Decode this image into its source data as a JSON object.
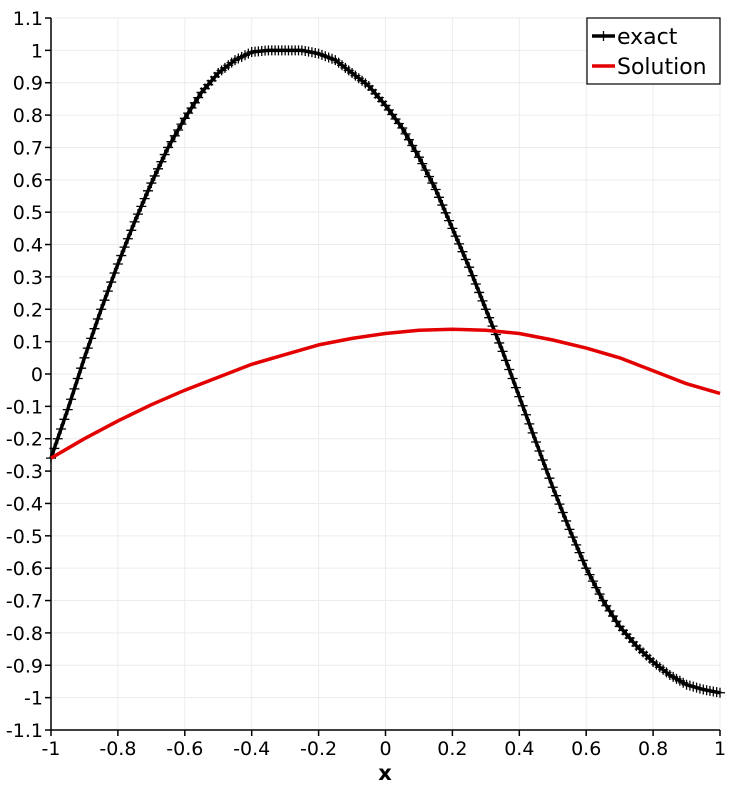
{
  "chart_data": {
    "type": "line",
    "title": "",
    "xlabel": "x",
    "ylabel": "",
    "xlim": [
      -1,
      1
    ],
    "ylim": [
      -1.1,
      1.1
    ],
    "grid": true,
    "legend_position": "top-right",
    "x_ticks": [
      -1,
      -0.8,
      -0.6,
      -0.4,
      -0.2,
      0,
      0.2,
      0.4,
      0.6,
      0.8,
      1
    ],
    "x_tick_labels": [
      "-1",
      "-0.8",
      "-0.6",
      "-0.4",
      "-0.2",
      "0",
      "0.2",
      "0.4",
      "0.6",
      "0.8",
      "1"
    ],
    "y_ticks": [
      1.1,
      1,
      0.9,
      0.8,
      0.7,
      0.6,
      0.5,
      0.4,
      0.3,
      0.2,
      0.1,
      0,
      -0.1,
      -0.2,
      -0.3,
      -0.4,
      -0.5,
      -0.6,
      -0.7,
      -0.8,
      -0.9,
      -1,
      -1.1
    ],
    "y_tick_labels": [
      "1.1",
      "1",
      "0.9",
      "0.8",
      "0.7",
      "0.6",
      "0.5",
      "0.4",
      "0.3",
      "0.2",
      "0.1",
      "0",
      "-0.1",
      "-0.2",
      "-0.3",
      "-0.4",
      "-0.5",
      "-0.6",
      "-0.7",
      "-0.8",
      "-0.9",
      "-1",
      "-1.1"
    ],
    "series": [
      {
        "name": "exact",
        "color": "#000000",
        "marker": "plus",
        "x": [
          -1,
          -0.95,
          -0.9,
          -0.85,
          -0.8,
          -0.75,
          -0.7,
          -0.65,
          -0.6,
          -0.55,
          -0.5,
          -0.45,
          -0.4,
          -0.35,
          -0.3,
          -0.25,
          -0.2,
          -0.15,
          -0.1,
          -0.05,
          0,
          0.05,
          0.1,
          0.15,
          0.2,
          0.25,
          0.3,
          0.35,
          0.4,
          0.45,
          0.5,
          0.55,
          0.6,
          0.65,
          0.7,
          0.75,
          0.8,
          0.85,
          0.9,
          0.95,
          1
        ],
        "y": [
          -0.26,
          -0.11,
          0.05,
          0.2,
          0.34,
          0.47,
          0.59,
          0.7,
          0.79,
          0.87,
          0.93,
          0.97,
          0.995,
          1.0,
          1.0,
          1.0,
          0.99,
          0.97,
          0.93,
          0.89,
          0.83,
          0.76,
          0.67,
          0.57,
          0.45,
          0.33,
          0.2,
          0.07,
          -0.07,
          -0.21,
          -0.35,
          -0.48,
          -0.6,
          -0.7,
          -0.78,
          -0.84,
          -0.89,
          -0.93,
          -0.96,
          -0.975,
          -0.985
        ]
      },
      {
        "name": "Solution",
        "color": "#e30000",
        "marker": "none",
        "x": [
          -1,
          -0.9,
          -0.8,
          -0.7,
          -0.6,
          -0.5,
          -0.4,
          -0.3,
          -0.2,
          -0.1,
          0,
          0.1,
          0.2,
          0.3,
          0.4,
          0.5,
          0.6,
          0.7,
          0.8,
          0.9,
          1
        ],
        "y": [
          -0.26,
          -0.2,
          -0.145,
          -0.095,
          -0.05,
          -0.01,
          0.03,
          0.06,
          0.09,
          0.11,
          0.125,
          0.135,
          0.138,
          0.135,
          0.125,
          0.105,
          0.08,
          0.05,
          0.01,
          -0.03,
          -0.06
        ]
      }
    ]
  }
}
